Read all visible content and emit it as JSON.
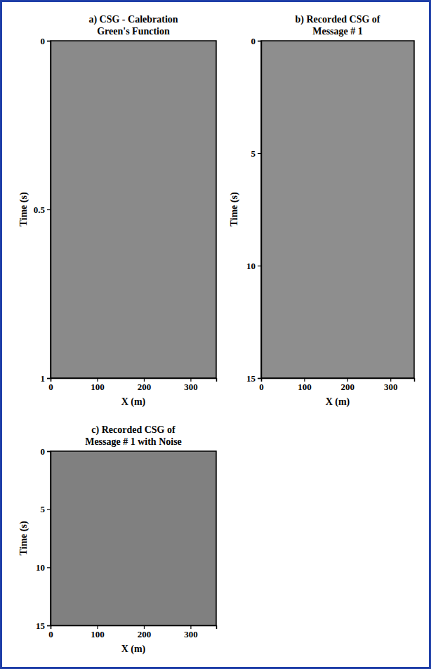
{
  "chart_data": [
    {
      "type": "image",
      "title": "a) CSG - Calebration Green's Function",
      "x_label": "X (m)",
      "y_label": "Time (s)",
      "xlim": [
        0,
        355
      ],
      "ylim": [
        0,
        1
      ],
      "xticks": [
        0,
        100,
        200,
        300
      ],
      "yticks": [
        0,
        0.5,
        1
      ]
    },
    {
      "type": "image",
      "title": "b) Recorded CSG of Message # 1",
      "x_label": "X (m)",
      "y_label": "Time (s)",
      "xlim": [
        0,
        355
      ],
      "ylim": [
        0,
        15
      ],
      "xticks": [
        0,
        100,
        200,
        300
      ],
      "yticks": [
        0,
        5,
        10,
        15
      ]
    },
    {
      "type": "image",
      "title": "c) Recorded CSG of Message # 1 with Noise",
      "x_label": "X (m)",
      "y_label": "Time (s)",
      "xlim": [
        0,
        355
      ],
      "ylim": [
        0,
        15
      ],
      "xticks": [
        0,
        100,
        200,
        300
      ],
      "yticks": [
        0,
        5,
        10,
        15
      ]
    }
  ]
}
